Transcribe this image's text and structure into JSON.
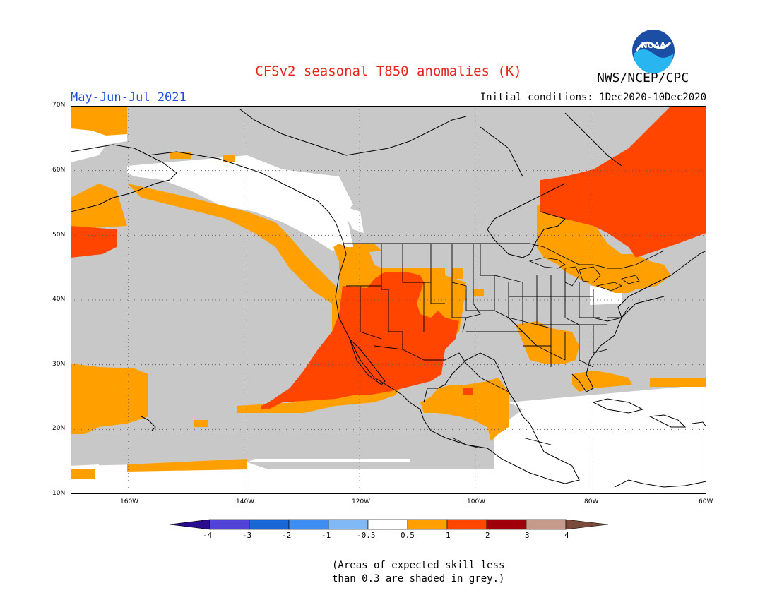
{
  "title": "CFSv2 seasonal T850 anomalies (K)",
  "agency": "NWS/NCEP/CPC",
  "logo_text": "NOAA",
  "season": "May-Jun-Jul 2021",
  "initial_conditions": "Initial conditions: 1Dec2020-10Dec2020",
  "map": {
    "lat_labels": [
      "70N",
      "60N",
      "50N",
      "40N",
      "30N",
      "20N",
      "10N"
    ],
    "lon_labels": [
      "160W",
      "140W",
      "120W",
      "100W",
      "80W",
      "60W"
    ],
    "lat_range": [
      10,
      70
    ],
    "lon_range": [
      -170,
      -60
    ],
    "grid": "dotted every 10 degrees"
  },
  "legend": {
    "tick_labels": [
      "-4",
      "-3",
      "-2",
      "-1",
      "-0.5",
      "0.5",
      "1",
      "2",
      "3",
      "4"
    ],
    "colors": {
      "lt_-4": "#2a0c8f",
      "-4_-3": "#5143d6",
      "-3_-2": "#1b66d6",
      "-2_-1": "#3d8ef0",
      "-1_-0.5": "#80b9f5",
      "-0.5_0.5": "#ffffff",
      "0.5_1": "#ffa000",
      "1_2": "#ff4500",
      "2_3": "#a0000a",
      "3_4": "#c59a8a",
      "gt_4": "#7a4a3a"
    },
    "low_skill_color": "#c8c8c8"
  },
  "note": [
    "(Areas of expected skill less",
    "than 0.3 are shaded in grey.)"
  ]
}
